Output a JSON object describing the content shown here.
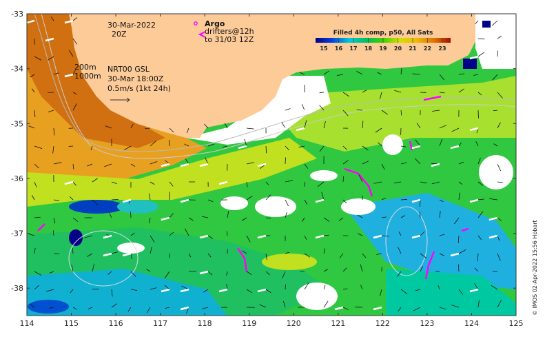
{
  "map": {
    "lon_range": [
      114,
      125
    ],
    "lat_range": [
      -38.5,
      -33
    ],
    "x_ticks": [
      "114",
      "115",
      "116",
      "117",
      "118",
      "119",
      "120",
      "121",
      "122",
      "123",
      "124",
      "125"
    ],
    "y_ticks": [
      "-33",
      "-34",
      "-35",
      "-36",
      "-37",
      "-38"
    ]
  },
  "annotations": {
    "date": "30-Mar-2022",
    "time": "20Z",
    "isobath_200": "200m",
    "isobath_1000": "1000m",
    "current_source": "NRT00 GSL",
    "current_time": "30-Mar 18:00Z",
    "current_scale": "0.5m/s (1kt 24h)",
    "argo_label": "Argo",
    "drifters_label": "drifters@12h",
    "drifters_until": "to 31/03 12Z"
  },
  "colorbar": {
    "title": "Filled 4h comp, p50, All Sats",
    "ticks": [
      "15",
      "16",
      "17",
      "18",
      "19",
      "20",
      "21",
      "22",
      "23"
    ],
    "colors": [
      "#00008b",
      "#0050d0",
      "#00b0e0",
      "#00c070",
      "#40d000",
      "#c0e000",
      "#f0c000",
      "#e07000",
      "#a01000"
    ]
  },
  "credit": "© IMOS 02-Apr-2022 15:56 Hobart",
  "colors": {
    "land": "#fccb98",
    "argo": "#ff00ff"
  }
}
